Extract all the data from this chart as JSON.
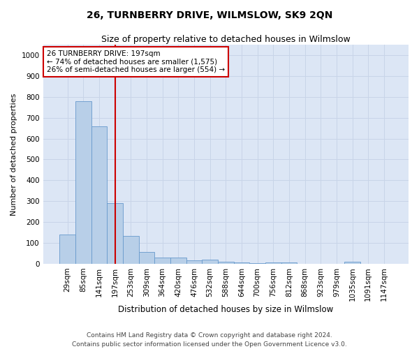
{
  "title": "26, TURNBERRY DRIVE, WILMSLOW, SK9 2QN",
  "subtitle": "Size of property relative to detached houses in Wilmslow",
  "xlabel": "Distribution of detached houses by size in Wilmslow",
  "ylabel": "Number of detached properties",
  "bar_labels": [
    "29sqm",
    "85sqm",
    "141sqm",
    "197sqm",
    "253sqm",
    "309sqm",
    "364sqm",
    "420sqm",
    "476sqm",
    "532sqm",
    "588sqm",
    "644sqm",
    "700sqm",
    "756sqm",
    "812sqm",
    "868sqm",
    "923sqm",
    "979sqm",
    "1035sqm",
    "1091sqm",
    "1147sqm"
  ],
  "bar_heights": [
    140,
    778,
    660,
    290,
    135,
    57,
    30,
    30,
    17,
    18,
    10,
    5,
    2,
    5,
    5,
    0,
    0,
    0,
    10,
    0,
    0
  ],
  "bar_color": "#b8cfe8",
  "bar_edge_color": "#6699cc",
  "vline_x": 3,
  "vline_color": "#cc0000",
  "annotation_line1": "26 TURNBERRY DRIVE: 197sqm",
  "annotation_line2": "← 74% of detached houses are smaller (1,575)",
  "annotation_line3": "26% of semi-detached houses are larger (554) →",
  "annotation_box_color": "#ffffff",
  "annotation_box_edge": "#cc0000",
  "ylim": [
    0,
    1050
  ],
  "yticks": [
    0,
    100,
    200,
    300,
    400,
    500,
    600,
    700,
    800,
    900,
    1000
  ],
  "grid_color": "#c8d4e8",
  "background_color": "#dce6f5",
  "footer": "Contains HM Land Registry data © Crown copyright and database right 2024.\nContains public sector information licensed under the Open Government Licence v3.0.",
  "title_fontsize": 10,
  "subtitle_fontsize": 9,
  "xlabel_fontsize": 8.5,
  "ylabel_fontsize": 8,
  "tick_fontsize": 7.5,
  "annot_fontsize": 7.5,
  "footer_fontsize": 6.5
}
